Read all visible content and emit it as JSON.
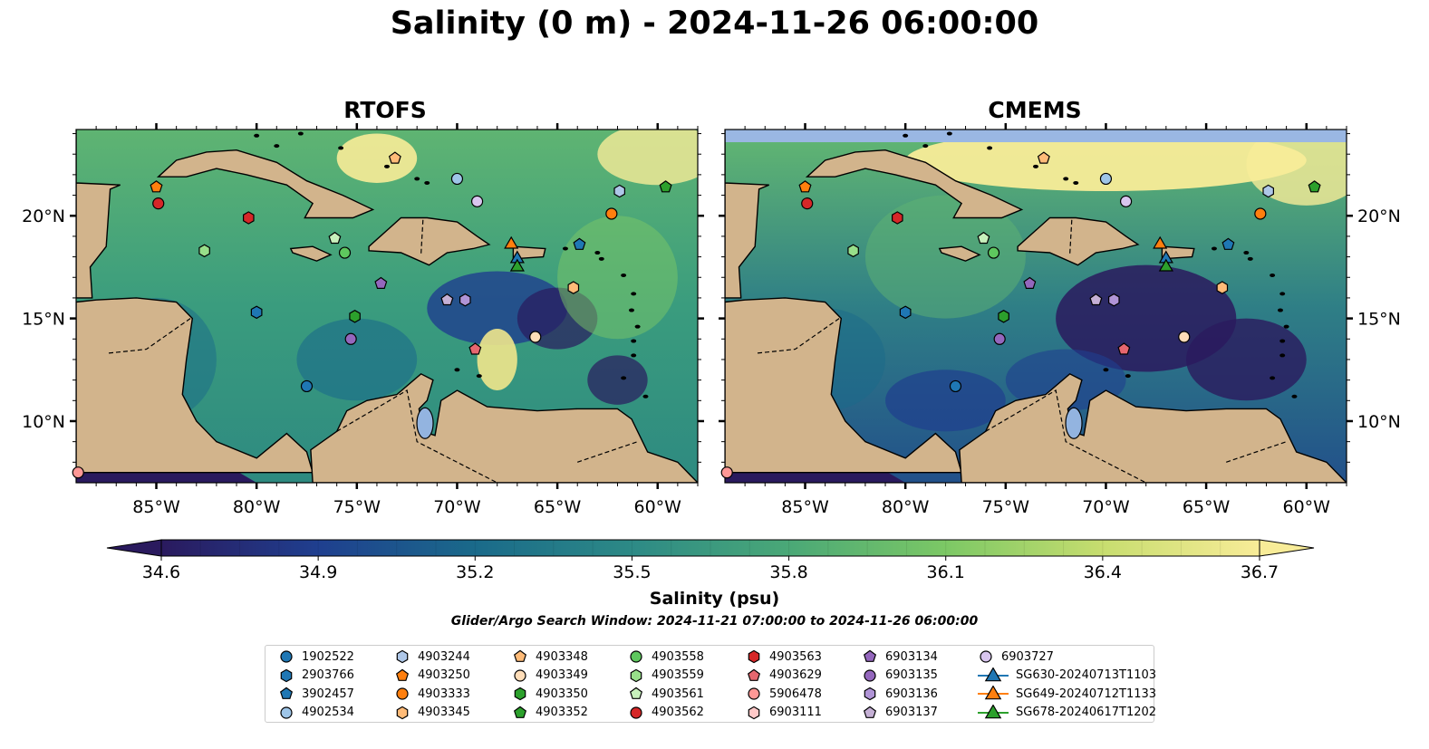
{
  "title": "Salinity (0 m) - 2024-11-26 06:00:00",
  "panels": [
    {
      "title": "RTOFS"
    },
    {
      "title": "CMEMS"
    }
  ],
  "x_ticks": [
    "85°W",
    "80°W",
    "75°W",
    "70°W",
    "65°W",
    "60°W"
  ],
  "y_ticks": [
    "20°N",
    "15°N",
    "10°N"
  ],
  "colorbar": {
    "label": "Salinity (psu)",
    "min": 34.6,
    "max": 36.7,
    "ticks": [
      "34.6",
      "34.9",
      "35.2",
      "35.5",
      "35.8",
      "36.1",
      "36.4",
      "36.7"
    ],
    "colormap": [
      "#2a1a5e",
      "#1f3f8f",
      "#1a6a8a",
      "#2d8a86",
      "#4aa877",
      "#7cc865",
      "#c7dd6f",
      "#f8ec98"
    ],
    "extend": "both"
  },
  "search_window": "Glider/Argo Search Window: 2024-11-21 07:00:00 to 2024-11-26 06:00:00",
  "colors": {
    "land": "#d2b48c",
    "lake": "#93b4e0",
    "gap": "#9ab7e3"
  },
  "legend": [
    {
      "label": "1902522",
      "marker": "circle",
      "color": "#1f77b4"
    },
    {
      "label": "2903766",
      "marker": "hexagon",
      "color": "#1f77b4"
    },
    {
      "label": "3902457",
      "marker": "pentagon",
      "color": "#1f77b4"
    },
    {
      "label": "4902534",
      "marker": "circle",
      "color": "#9ec5e8"
    },
    {
      "label": "4903244",
      "marker": "hexagon",
      "color": "#aec7e8"
    },
    {
      "label": "4903250",
      "marker": "pentagon",
      "color": "#ff7f0e"
    },
    {
      "label": "4903333",
      "marker": "circle",
      "color": "#ff7f0e"
    },
    {
      "label": "4903345",
      "marker": "hexagon",
      "color": "#ffbb78"
    },
    {
      "label": "4903348",
      "marker": "pentagon",
      "color": "#ffbb78"
    },
    {
      "label": "4903349",
      "marker": "circle",
      "color": "#ffddb8"
    },
    {
      "label": "4903350",
      "marker": "hexagon",
      "color": "#2ca02c"
    },
    {
      "label": "4903352",
      "marker": "pentagon",
      "color": "#2ca02c"
    },
    {
      "label": "4903558",
      "marker": "circle",
      "color": "#5ec75e"
    },
    {
      "label": "4903559",
      "marker": "hexagon",
      "color": "#98df8a"
    },
    {
      "label": "4903561",
      "marker": "pentagon",
      "color": "#c8f0bc"
    },
    {
      "label": "4903562",
      "marker": "circle",
      "color": "#d62728"
    },
    {
      "label": "4903563",
      "marker": "hexagon",
      "color": "#d62728"
    },
    {
      "label": "4903629",
      "marker": "pentagon",
      "color": "#e6676f"
    },
    {
      "label": "5906478",
      "marker": "circle",
      "color": "#ff9896"
    },
    {
      "label": "6903111",
      "marker": "hexagon",
      "color": "#ffc9c8"
    },
    {
      "label": "6903134",
      "marker": "pentagon",
      "color": "#9467bd"
    },
    {
      "label": "6903135",
      "marker": "circle",
      "color": "#9467bd"
    },
    {
      "label": "6903136",
      "marker": "hexagon",
      "color": "#b094d6"
    },
    {
      "label": "6903137",
      "marker": "pentagon",
      "color": "#c5b0d5"
    },
    {
      "label": "6903727",
      "marker": "circle",
      "color": "#d9c6ef"
    },
    {
      "label": "SG630-20240713T1103",
      "marker": "triangle",
      "color": "#1f77b4"
    },
    {
      "label": "SG649-20240712T1133",
      "marker": "triangle",
      "color": "#ff7f0e"
    },
    {
      "label": "SG678-20240617T1202",
      "marker": "triangle",
      "color": "#2ca02c"
    }
  ],
  "observations": [
    {
      "id": "4903250",
      "lon": -85.0,
      "lat": 21.4
    },
    {
      "id": "4903562",
      "lon": -84.9,
      "lat": 20.6
    },
    {
      "id": "4903563",
      "lon": -80.4,
      "lat": 19.9
    },
    {
      "id": "4903348",
      "lon": -73.1,
      "lat": 22.8
    },
    {
      "id": "4902534",
      "lon": -70.0,
      "lat": 21.8
    },
    {
      "id": "6903727",
      "lon": -69.0,
      "lat": 20.7
    },
    {
      "id": "4903244",
      "lon": -61.9,
      "lat": 21.2
    },
    {
      "id": "4903352",
      "lon": -59.6,
      "lat": 21.4
    },
    {
      "id": "4903333",
      "lon": -62.3,
      "lat": 20.1
    },
    {
      "id": "4903559",
      "lon": -82.6,
      "lat": 18.3
    },
    {
      "id": "4903561",
      "lon": -76.1,
      "lat": 18.9
    },
    {
      "id": "4903558",
      "lon": -75.6,
      "lat": 18.2
    },
    {
      "id": "SG649-20240712T1133",
      "lon": -67.3,
      "lat": 18.6
    },
    {
      "id": "SG630-20240713T1103",
      "lon": -67.0,
      "lat": 17.9
    },
    {
      "id": "SG678-20240617T1202",
      "lon": -67.0,
      "lat": 17.5
    },
    {
      "id": "3902457",
      "lon": -63.9,
      "lat": 18.6
    },
    {
      "id": "6903134",
      "lon": -73.8,
      "lat": 16.7
    },
    {
      "id": "6903137",
      "lon": -70.5,
      "lat": 15.9
    },
    {
      "id": "6903136",
      "lon": -69.6,
      "lat": 15.9
    },
    {
      "id": "4903345",
      "lon": -64.2,
      "lat": 16.5
    },
    {
      "id": "2903766",
      "lon": -80.0,
      "lat": 15.3
    },
    {
      "id": "4903350",
      "lon": -75.1,
      "lat": 15.1
    },
    {
      "id": "6903135",
      "lon": -75.3,
      "lat": 14.0
    },
    {
      "id": "4903629",
      "lon": -69.1,
      "lat": 13.5
    },
    {
      "id": "4903349",
      "lon": -66.1,
      "lat": 14.1
    },
    {
      "id": "1902522",
      "lon": -77.5,
      "lat": 11.7
    },
    {
      "id": "5906478",
      "lon": -88.9,
      "lat": 7.5
    }
  ]
}
